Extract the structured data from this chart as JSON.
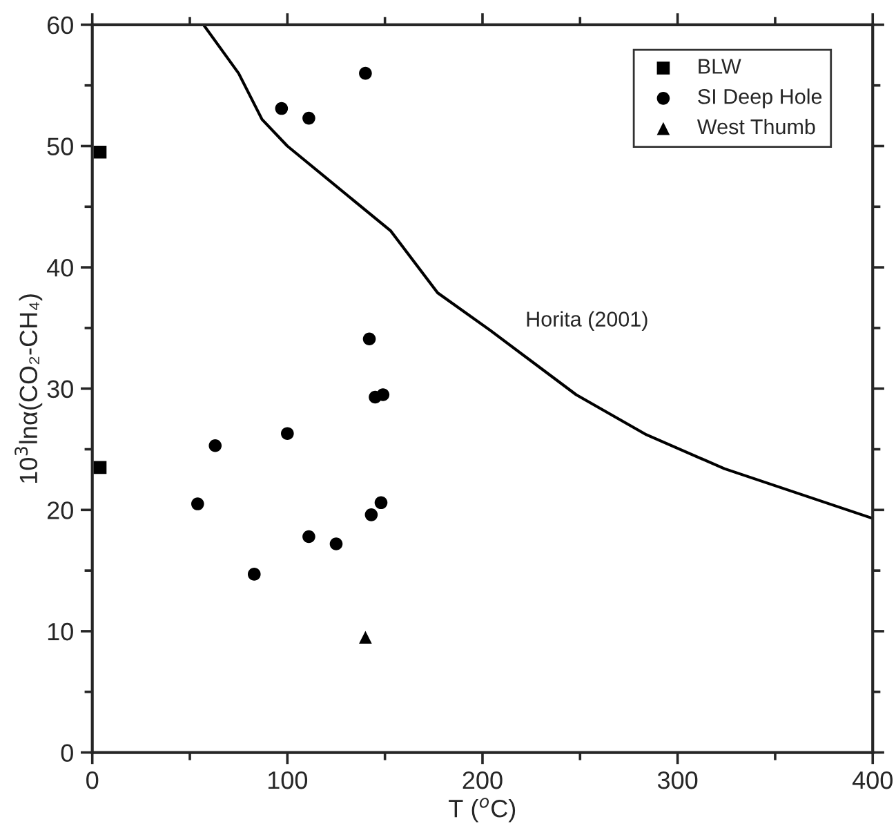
{
  "chart_data": {
    "type": "scatter",
    "xlabel": "T ($^{o}$C)",
    "ylabel": "10$^{3}$lnα(CO₂-CH₄)",
    "xlim": [
      0,
      400
    ],
    "xticks": [
      0,
      100,
      200,
      300,
      400
    ],
    "ylim": [
      0,
      60
    ],
    "yticks": [
      0,
      10,
      20,
      30,
      40,
      50,
      60
    ],
    "legend": "top right",
    "grid": false,
    "series": [
      {
        "name": "BLW",
        "color": "#000000",
        "marker": "square",
        "x": [
          4,
          4
        ],
        "values": [
          49.5,
          23.5
        ]
      },
      {
        "name": "SI Deep Hole",
        "color": "#000000",
        "marker": "circle",
        "x": [
          97,
          111,
          140,
          142,
          145,
          149,
          63,
          100,
          54,
          83,
          111,
          125,
          143,
          148
        ],
        "values": [
          53.1,
          52.3,
          56.0,
          34.1,
          29.3,
          29.5,
          25.3,
          26.3,
          20.5,
          14.7,
          17.8,
          17.2,
          19.6,
          20.6
        ]
      },
      {
        "name": "West Thumb",
        "color": "#000000",
        "marker": "triangle",
        "x": [
          140
        ],
        "values": [
          9.5
        ]
      },
      {
        "type": "line",
        "color": "#000000",
        "marker": "none",
        "line_style": "solid",
        "x": [
          57,
          75,
          87,
          100,
          153,
          177,
          204,
          248,
          284,
          324,
          400
        ],
        "values": [
          60,
          56,
          52.2,
          50,
          43,
          37.9,
          34.8,
          29.5,
          26.2,
          23.4,
          19.3
        ]
      }
    ],
    "annotations": [
      "Horita (2001)"
    ]
  }
}
